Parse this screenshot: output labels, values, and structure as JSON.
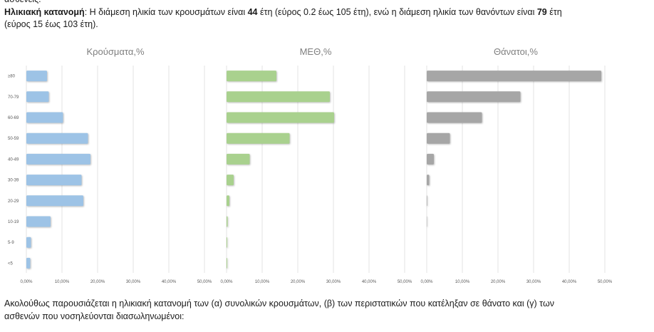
{
  "top_fragment": "ασθενείς.",
  "paragraph1": {
    "heading": "Ηλικιακή κατανομή",
    "sep": ": ",
    "t1": "Η διάμεση ηλικία των κρουσμάτων είναι ",
    "v1": "44",
    "t2": " έτη (εύρος 0.2 έως 105 έτη), ενώ η διάμεση ηλικία των θανόντων είναι ",
    "v2": "79",
    "t3": " έτη",
    "line2": "(εύρος 15 έως 103 έτη)."
  },
  "chart_data": [
    {
      "type": "bar",
      "orientation": "horizontal",
      "title": "Κρούσματα,%",
      "categories": [
        "≥80",
        "70-79",
        "60-69",
        "50-59",
        "40-49",
        "30-39",
        "20-29",
        "10-19",
        "5-9",
        "<5"
      ],
      "values": [
        5.8,
        6.3,
        10.3,
        17.3,
        18.0,
        15.5,
        16.0,
        6.8,
        1.3,
        1.1
      ],
      "xlim": [
        0,
        50
      ],
      "xticks": [
        "0,00%",
        "10,00%",
        "20,00%",
        "30,00%",
        "40,00%",
        "50,00%"
      ],
      "color": "#9dc3e6",
      "grid": true
    },
    {
      "type": "bar",
      "orientation": "horizontal",
      "title": "ΜΕΘ,%",
      "categories": [
        "≥80",
        "70-79",
        "60-69",
        "50-59",
        "40-49",
        "30-39",
        "20-29",
        "10-19",
        "5-9",
        "<5"
      ],
      "values": [
        14.0,
        29.0,
        30.2,
        17.7,
        6.5,
        2.0,
        0.8,
        0.3,
        0.2,
        0.2
      ],
      "xlim": [
        0,
        50
      ],
      "xticks": [
        "0,00%",
        "10,00%",
        "20,00%",
        "30,00%",
        "40,00%",
        "50,00%"
      ],
      "color": "#a9d18e",
      "grid": true
    },
    {
      "type": "bar",
      "orientation": "horizontal",
      "title": "Θάνατοι,%",
      "categories": [
        "≥80",
        "70-79",
        "60-69",
        "50-59",
        "40-49",
        "30-39",
        "20-29",
        "10-19",
        "5-9",
        "<5"
      ],
      "values": [
        49.0,
        26.3,
        15.5,
        6.5,
        2.0,
        0.7,
        0.15,
        0.1,
        0.0,
        0.0
      ],
      "xlim": [
        0,
        50
      ],
      "xticks": [
        "0,00%",
        "10,00%",
        "20,00%",
        "30,00%",
        "40,00%",
        "50,00%"
      ],
      "color": "#a6a6a6",
      "grid": true
    }
  ],
  "paragraph2": {
    "line1": "Ακολούθως παρουσιάζεται η ηλικιακή κατανομή των (α) συνολικών κρουσμάτων, (β) των περιστατικών που κατέληξαν σε θάνατο και (γ) των",
    "line2": "ασθενών που νοσηλεύονται διασωληνωμένοι:"
  }
}
